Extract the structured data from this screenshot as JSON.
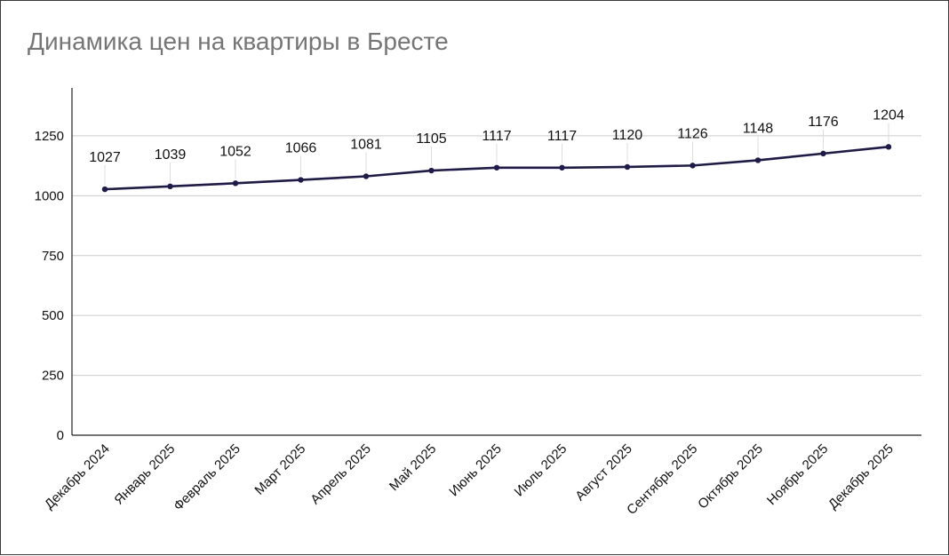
{
  "chart_data": {
    "type": "line",
    "title": "Динамика цен на квартиры в Бресте",
    "xlabel": "",
    "ylabel": "",
    "categories": [
      "Декабрь 2024",
      "Январь 2025",
      "Февраль 2025",
      "Март 2025",
      "Апрель 2025",
      "Май 2025",
      "Июнь 2025",
      "Июль 2025",
      "Август 2025",
      "Сентябрь 2025",
      "Октябрь 2025",
      "Ноябрь 2025",
      "Декабрь 2025"
    ],
    "series": [
      {
        "values": [
          1027,
          1039,
          1052,
          1066,
          1081,
          1105,
          1117,
          1117,
          1120,
          1126,
          1148,
          1176,
          1204
        ]
      }
    ],
    "data_labels": [
      "1027",
      "1039",
      "1052",
      "1066",
      "1081",
      "1105",
      "1117",
      "1117",
      "1120",
      "1126",
      "1148",
      "1176",
      "1204"
    ],
    "yticks": [
      0,
      250,
      500,
      750,
      1000,
      1250
    ],
    "ytick_labels": [
      "0",
      "250",
      "500",
      "750",
      "1000",
      "1250"
    ],
    "ylim": [
      0,
      1450
    ],
    "grid": true,
    "legend": "none",
    "colors": {
      "line": "#1e1a4d",
      "grid": "#cccccc",
      "axis": "#222222"
    }
  }
}
